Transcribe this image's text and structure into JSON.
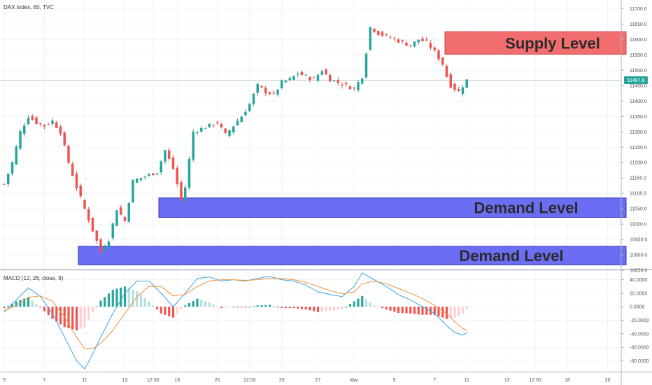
{
  "chart_data": [
    {
      "type": "candlestick",
      "title": "DAX Index, 60, TVC",
      "y_ticks": [
        "11700.0",
        "11650.0",
        "11600.0",
        "11550.0",
        "11500.0",
        "11450.0",
        "11400.0",
        "11350.0",
        "11300.0",
        "11250.0",
        "11200.0",
        "11150.0",
        "11100.0",
        "11050.0",
        "11000.0",
        "10950.0",
        "10900.0",
        "10850.0"
      ],
      "ylim": [
        10855,
        11728
      ],
      "current_price": "11467.8",
      "grid": true,
      "zones": [
        {
          "name": "Supply Level",
          "price_low": 11552,
          "price_high": 11625,
          "color": "#f26d6d"
        },
        {
          "name": "Demand Level",
          "price_low": 11022,
          "price_high": 11085,
          "color": "#6b6ef2"
        },
        {
          "name": "Demand Level",
          "price_low": 10868,
          "price_high": 10928,
          "color": "#6b6ef2"
        }
      ],
      "close_path": [
        [
          0,
          11130
        ],
        [
          2,
          11200
        ],
        [
          4,
          11300
        ],
        [
          6,
          11350
        ],
        [
          8,
          11330
        ],
        [
          10,
          11320
        ],
        [
          12,
          11335
        ],
        [
          14,
          11300
        ],
        [
          16,
          11200
        ],
        [
          18,
          11120
        ],
        [
          20,
          11050
        ],
        [
          22,
          10980
        ],
        [
          24,
          10910
        ],
        [
          26,
          10950
        ],
        [
          28,
          11050
        ],
        [
          30,
          11010
        ],
        [
          32,
          11140
        ],
        [
          34,
          11150
        ],
        [
          36,
          11160
        ],
        [
          38,
          11170
        ],
        [
          40,
          11240
        ],
        [
          42,
          11180
        ],
        [
          44,
          11080
        ],
        [
          45,
          11120
        ],
        [
          47,
          11300
        ],
        [
          49,
          11310
        ],
        [
          51,
          11320
        ],
        [
          53,
          11330
        ],
        [
          55,
          11290
        ],
        [
          57,
          11320
        ],
        [
          59,
          11350
        ],
        [
          61,
          11390
        ],
        [
          63,
          11450
        ],
        [
          65,
          11430
        ],
        [
          67,
          11420
        ],
        [
          69,
          11460
        ],
        [
          71,
          11470
        ],
        [
          73,
          11490
        ],
        [
          75,
          11480
        ],
        [
          77,
          11470
        ],
        [
          79,
          11500
        ],
        [
          81,
          11470
        ],
        [
          83,
          11460
        ],
        [
          85,
          11450
        ],
        [
          87,
          11440
        ],
        [
          89,
          11480
        ],
        [
          91,
          11640
        ],
        [
          93,
          11620
        ],
        [
          95,
          11610
        ],
        [
          97,
          11600
        ],
        [
          99,
          11590
        ],
        [
          101,
          11580
        ],
        [
          103,
          11600
        ],
        [
          105,
          11590
        ],
        [
          107,
          11560
        ],
        [
          108,
          11540
        ],
        [
          109,
          11520
        ],
        [
          110,
          11480
        ],
        [
          111,
          11450
        ],
        [
          112,
          11440
        ],
        [
          113,
          11430
        ],
        [
          114,
          11450
        ],
        [
          115,
          11468
        ]
      ],
      "x_ticks": [
        "5",
        "7",
        "11",
        "13",
        "12:00",
        "18",
        "20",
        "12:00",
        "25",
        "27",
        "Mar",
        "5",
        "7",
        "11",
        "13",
        "12:00",
        "18",
        "20"
      ],
      "x_tick_index": [
        0,
        10,
        20,
        30,
        37,
        43,
        53,
        61,
        69,
        78,
        87,
        97,
        107,
        115,
        125,
        132,
        140,
        150
      ],
      "x_max": 152
    },
    {
      "type": "macd",
      "title": "MACD (12, 26, close, 9)",
      "y_ticks": [
        "40.0000",
        "20.0000",
        "0.0000",
        "-20.0000",
        "-40.0000",
        "-60.0000",
        "-80.0000"
      ],
      "ylim": [
        -95,
        52
      ],
      "series": [
        {
          "name": "MACD",
          "color": "#3aa3e3",
          "points": [
            [
              0,
              -8
            ],
            [
              3,
              10
            ],
            [
              6,
              28
            ],
            [
              9,
              15
            ],
            [
              12,
              -10
            ],
            [
              15,
              -45
            ],
            [
              18,
              -80
            ],
            [
              20,
              -92
            ],
            [
              22,
              -70
            ],
            [
              24,
              -45
            ],
            [
              27,
              -10
            ],
            [
              30,
              20
            ],
            [
              33,
              38
            ],
            [
              36,
              38
            ],
            [
              39,
              20
            ],
            [
              42,
              0
            ],
            [
              45,
              20
            ],
            [
              48,
              42
            ],
            [
              51,
              44
            ],
            [
              54,
              38
            ],
            [
              57,
              40
            ],
            [
              60,
              38
            ],
            [
              63,
              42
            ],
            [
              66,
              45
            ],
            [
              69,
              40
            ],
            [
              72,
              38
            ],
            [
              75,
              32
            ],
            [
              78,
              22
            ],
            [
              81,
              18
            ],
            [
              84,
              15
            ],
            [
              87,
              30
            ],
            [
              89,
              50
            ],
            [
              92,
              40
            ],
            [
              95,
              30
            ],
            [
              98,
              18
            ],
            [
              101,
              10
            ],
            [
              104,
              0
            ],
            [
              107,
              -10
            ],
            [
              110,
              -28
            ],
            [
              112,
              -38
            ],
            [
              114,
              -42
            ],
            [
              115,
              -38
            ]
          ]
        },
        {
          "name": "Signal",
          "color": "#f0923a",
          "points": [
            [
              0,
              -6
            ],
            [
              3,
              2
            ],
            [
              6,
              14
            ],
            [
              9,
              16
            ],
            [
              12,
              8
            ],
            [
              15,
              -15
            ],
            [
              18,
              -45
            ],
            [
              20,
              -62
            ],
            [
              22,
              -62
            ],
            [
              24,
              -54
            ],
            [
              27,
              -35
            ],
            [
              30,
              -10
            ],
            [
              33,
              15
            ],
            [
              36,
              30
            ],
            [
              39,
              30
            ],
            [
              42,
              16
            ],
            [
              45,
              18
            ],
            [
              48,
              30
            ],
            [
              51,
              38
            ],
            [
              54,
              40
            ],
            [
              57,
              40
            ],
            [
              60,
              39
            ],
            [
              63,
              40
            ],
            [
              66,
              42
            ],
            [
              69,
              42
            ],
            [
              72,
              40
            ],
            [
              75,
              36
            ],
            [
              78,
              30
            ],
            [
              81,
              24
            ],
            [
              84,
              19
            ],
            [
              87,
              22
            ],
            [
              89,
              34
            ],
            [
              92,
              38
            ],
            [
              95,
              34
            ],
            [
              98,
              27
            ],
            [
              101,
              20
            ],
            [
              104,
              12
            ],
            [
              107,
              2
            ],
            [
              110,
              -10
            ],
            [
              112,
              -22
            ],
            [
              114,
              -32
            ],
            [
              115,
              -35
            ]
          ]
        }
      ]
    }
  ]
}
